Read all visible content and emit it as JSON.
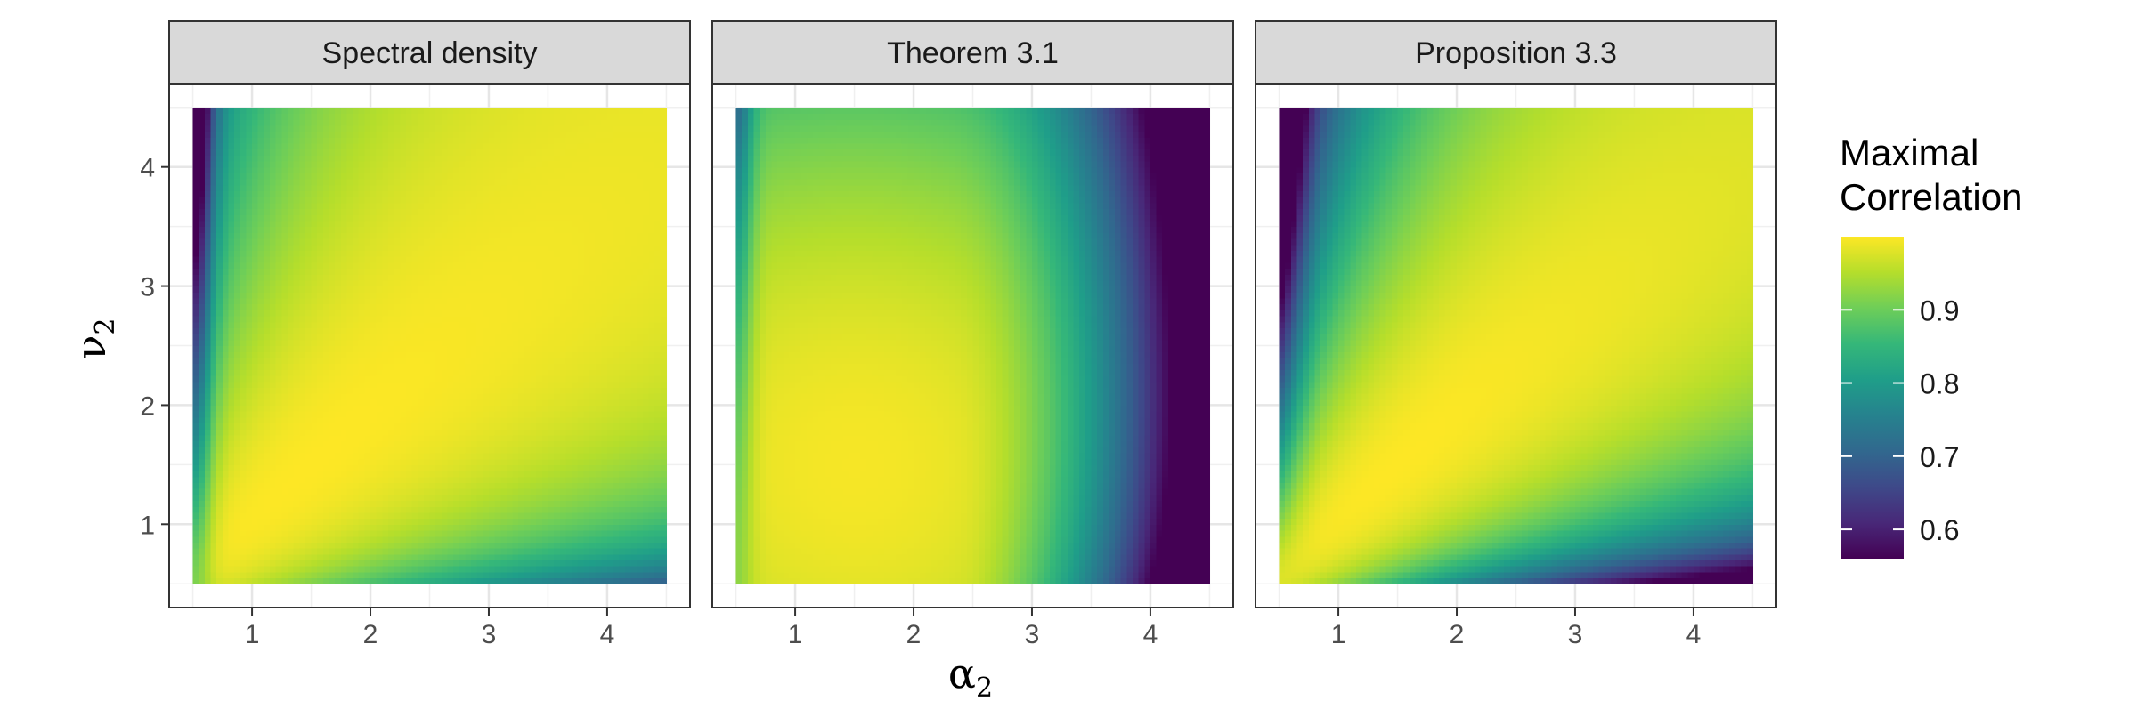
{
  "chart_data": {
    "type": "heatmap",
    "panels": [
      {
        "title": "Spectral density",
        "model": "spectral"
      },
      {
        "title": "Theorem 3.1",
        "model": "theorem"
      },
      {
        "title": "Proposition 3.3",
        "model": "proposition"
      }
    ],
    "x": {
      "symbol": "α",
      "subscript": "2",
      "range": [
        0.5,
        4.5
      ],
      "ticks": [
        1,
        2,
        3,
        4
      ]
    },
    "y": {
      "symbol": "ν",
      "subscript": "2",
      "range": [
        0.5,
        4.5
      ],
      "ticks": [
        1,
        2,
        3,
        4
      ]
    },
    "grid": true,
    "legend": {
      "title_line1": "Maximal",
      "title_line2": "Correlation",
      "ticks": [
        0.9,
        0.8,
        0.7,
        0.6
      ],
      "range": [
        0.56,
        1.0
      ],
      "placement": "right",
      "colormap": "viridis",
      "colors": [
        "#440154",
        "#482878",
        "#3e4989",
        "#31688e",
        "#26828e",
        "#1f9e89",
        "#35b779",
        "#6ece58",
        "#b5de2b",
        "#fde725"
      ]
    }
  }
}
